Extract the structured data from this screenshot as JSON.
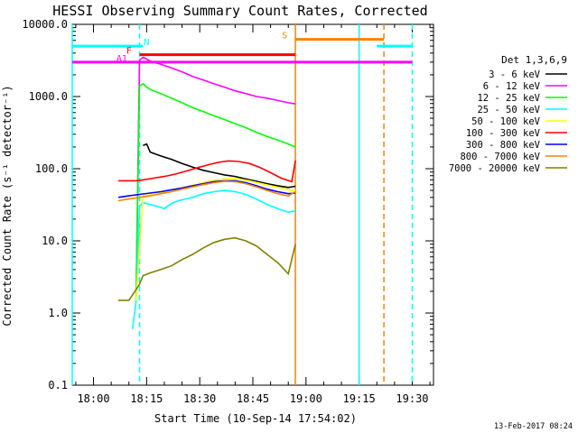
{
  "chart_data": {
    "type": "line",
    "title": "HESSI Observing Summary Count Rates, Corrected",
    "xlabel": "Start Time (10-Sep-14 17:54:02)",
    "ylabel": "Corrected Count Rate (s⁻¹ detector⁻¹)",
    "y_scale": "log",
    "ylim": [
      0.1,
      10000
    ],
    "y_ticks": [
      {
        "value": 0.1,
        "label": "0.1"
      },
      {
        "value": 1,
        "label": "1.0"
      },
      {
        "value": 10,
        "label": "10.0"
      },
      {
        "value": 100,
        "label": "100.0"
      },
      {
        "value": 1000,
        "label": "1000.0"
      },
      {
        "value": 10000,
        "label": "10000.0"
      }
    ],
    "xlim_min": [
      0,
      102
    ],
    "x_ticks": [
      {
        "value": 6,
        "label": "18:00"
      },
      {
        "value": 21,
        "label": "18:15"
      },
      {
        "value": 36,
        "label": "18:30"
      },
      {
        "value": 51,
        "label": "18:45"
      },
      {
        "value": 66,
        "label": "19:00"
      },
      {
        "value": 81,
        "label": "19:15"
      },
      {
        "value": 96,
        "label": "19:30"
      }
    ],
    "legend_title": "Det 1,3,6,9",
    "legend_position": "right",
    "series": [
      {
        "name": "3 - 6 keV",
        "color": "#000000",
        "x": [
          20,
          21,
          22,
          25,
          28,
          31,
          34,
          37,
          40,
          43,
          46,
          49,
          52,
          55,
          58,
          61,
          63
        ],
        "y": [
          210,
          220,
          170,
          150,
          135,
          118,
          105,
          95,
          88,
          82,
          78,
          72,
          67,
          62,
          58,
          55,
          57
        ]
      },
      {
        "name": "6 - 12 keV",
        "color": "#ff00ff",
        "x": [
          18,
          19,
          20,
          21,
          22,
          25,
          28,
          31,
          34,
          37,
          40,
          43,
          46,
          49,
          52,
          55,
          58,
          61,
          63
        ],
        "y": [
          1.5,
          3200,
          3500,
          3300,
          3100,
          2800,
          2500,
          2200,
          1900,
          1700,
          1500,
          1350,
          1200,
          1100,
          1000,
          950,
          880,
          820,
          790
        ]
      },
      {
        "name": "12 - 25 keV",
        "color": "#00ff00",
        "x": [
          18,
          19,
          20,
          21,
          22,
          25,
          28,
          31,
          34,
          37,
          40,
          43,
          46,
          49,
          52,
          55,
          58,
          61,
          63
        ],
        "y": [
          1.4,
          1400,
          1500,
          1350,
          1250,
          1100,
          950,
          820,
          700,
          620,
          540,
          480,
          420,
          370,
          320,
          280,
          250,
          220,
          200
        ]
      },
      {
        "name": "25 - 50 keV",
        "color": "#00ffff",
        "x": [
          17,
          18,
          19,
          20,
          22,
          24,
          26,
          28,
          30,
          32,
          34,
          37,
          40,
          43,
          46,
          49,
          52,
          55,
          58,
          61,
          63
        ],
        "y": [
          0.6,
          1.4,
          30,
          34,
          32,
          30,
          28,
          33,
          36,
          38,
          40,
          45,
          48,
          50,
          48,
          44,
          38,
          32,
          28,
          25,
          26
        ]
      },
      {
        "name": "50 - 100 keV",
        "color": "#ffff00",
        "x": [
          18,
          20,
          23,
          26,
          29,
          32,
          35,
          38,
          41,
          44,
          47,
          50,
          53,
          56,
          59,
          62,
          63
        ],
        "y": [
          1.5,
          42,
          44,
          48,
          52,
          56,
          60,
          66,
          70,
          73,
          72,
          68,
          63,
          58,
          54,
          50,
          50
        ]
      },
      {
        "name": "100 - 300 keV",
        "color": "#ff0000",
        "x": [
          13,
          14,
          16,
          18,
          20,
          23,
          26,
          29,
          32,
          35,
          38,
          41,
          44,
          47,
          50,
          53,
          56,
          59,
          62,
          63
        ],
        "y": [
          68,
          68,
          68,
          68,
          70,
          74,
          78,
          84,
          92,
          102,
          112,
          122,
          128,
          126,
          118,
          104,
          88,
          74,
          66,
          130
        ]
      },
      {
        "name": "300 - 800 keV",
        "color": "#0000ff",
        "x": [
          13,
          16,
          19,
          22,
          25,
          28,
          31,
          34,
          37,
          40,
          43,
          46,
          49,
          52,
          55,
          58,
          61,
          63
        ],
        "y": [
          40,
          42,
          44,
          46,
          48,
          51,
          54,
          58,
          62,
          66,
          68,
          68,
          64,
          58,
          52,
          48,
          45,
          46
        ]
      },
      {
        "name": "800 - 7000 keV",
        "color": "#ff8000",
        "x": [
          13,
          16,
          19,
          22,
          25,
          28,
          31,
          34,
          37,
          40,
          43,
          46,
          49,
          52,
          55,
          58,
          61,
          63
        ],
        "y": [
          36,
          38,
          40,
          42,
          45,
          48,
          52,
          56,
          60,
          64,
          67,
          66,
          62,
          56,
          50,
          45,
          42,
          48
        ]
      },
      {
        "name": "7000 - 20000 keV",
        "color": "#808000",
        "x": [
          13,
          16,
          19,
          20,
          22,
          25,
          28,
          31,
          34,
          37,
          40,
          43,
          46,
          49,
          52,
          55,
          58,
          61,
          63
        ],
        "y": [
          1.5,
          1.5,
          2.5,
          3.3,
          3.6,
          4,
          4.5,
          5.5,
          6.5,
          8,
          9.5,
          10.5,
          11,
          10,
          8.5,
          6.5,
          5,
          3.5,
          9
        ]
      }
    ],
    "annotations": [
      {
        "label": "N",
        "color": "#00ffff",
        "y": 5000,
        "x": [
          0,
          20
        ],
        "x_label": 21
      },
      {
        "label": "",
        "color": "#00ffff",
        "y": 5000,
        "x": [
          86,
          96
        ]
      },
      {
        "label": "F",
        "color": "#ff0000",
        "y": 3800,
        "x": [
          19,
          63
        ],
        "x_label": 16
      },
      {
        "label": "A1",
        "color": "#ff00ff",
        "y": 3000,
        "x": [
          0,
          96
        ],
        "x_label": 14
      },
      {
        "label": "S",
        "color": "#ff8000",
        "y": 6200,
        "x": [
          63,
          88
        ],
        "x_label": 60
      }
    ],
    "vlines": [
      {
        "x": 0,
        "color": "#00ffff",
        "style": "solid"
      },
      {
        "x": 19,
        "color": "#00ffff",
        "style": "dashed"
      },
      {
        "x": 63,
        "color": "#ff8000",
        "style": "solid"
      },
      {
        "x": 81,
        "color": "#00ffff",
        "style": "solid"
      },
      {
        "x": 88,
        "color": "#ff8000",
        "style": "dashed"
      },
      {
        "x": 96,
        "color": "#00ffff",
        "style": "dashed"
      }
    ]
  },
  "footer": {
    "date": "13-Feb-2017 08:24"
  }
}
